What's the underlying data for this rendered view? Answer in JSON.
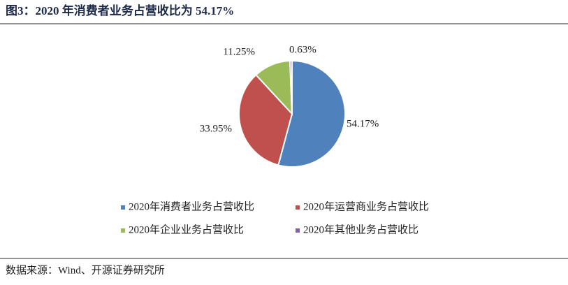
{
  "chart_data": {
    "type": "pie",
    "title": "图3：2020 年消费者业务占营收比为 54.17%",
    "categories": [
      "2020年消费者业务占营收比",
      "2020年运营商业务占营收比",
      "2020年企业业务占营收比",
      "2020年其他业务占营收比"
    ],
    "values": [
      54.17,
      33.95,
      11.25,
      0.63
    ],
    "value_labels": [
      "54.17%",
      "33.95%",
      "11.25%",
      "0.63%"
    ],
    "colors": [
      "#4f81bd",
      "#c0504d",
      "#9bbb59",
      "#8064a2"
    ],
    "source": "数据来源：Wind、开源证券研究所"
  }
}
